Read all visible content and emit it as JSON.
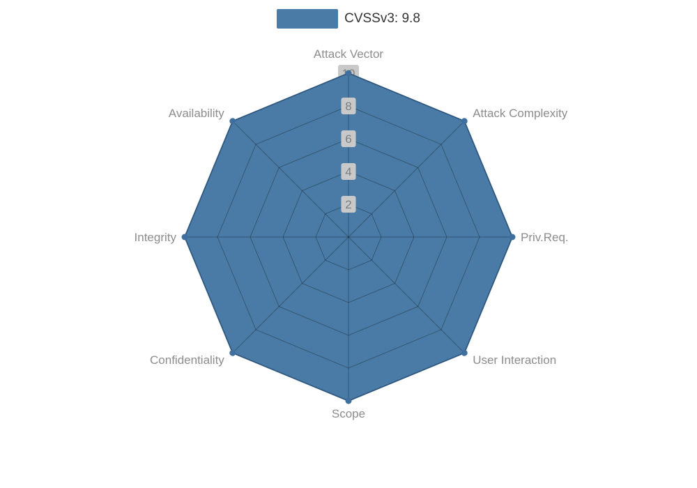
{
  "chart_data": {
    "type": "radar",
    "legend": "CVSSv3: 9.8",
    "legend_position": "top-center",
    "indicators": [
      "Attack Vector",
      "Attack Complexity",
      "Priv.Req.",
      "User Interaction",
      "Scope",
      "Confidentiality",
      "Integrity",
      "Availability"
    ],
    "axis_max": 10,
    "tick_values": [
      2,
      4,
      6,
      8,
      10
    ],
    "series": [
      {
        "name": "CVSSv3: 9.8",
        "values": [
          10,
          10,
          10,
          10,
          10,
          10,
          10,
          10
        ]
      }
    ],
    "grid": true,
    "colors": {
      "series_fill": "#4a7ba6",
      "series_line": "#3f6f9e",
      "axis_label": "#8c8c8c",
      "tick_text": "#7d7d7d",
      "tick_box": "#c9c9c9",
      "grid_line": "#999999",
      "grid_overlay": "rgba(0,0,0,0.30)",
      "legend_text": "#333333"
    }
  }
}
